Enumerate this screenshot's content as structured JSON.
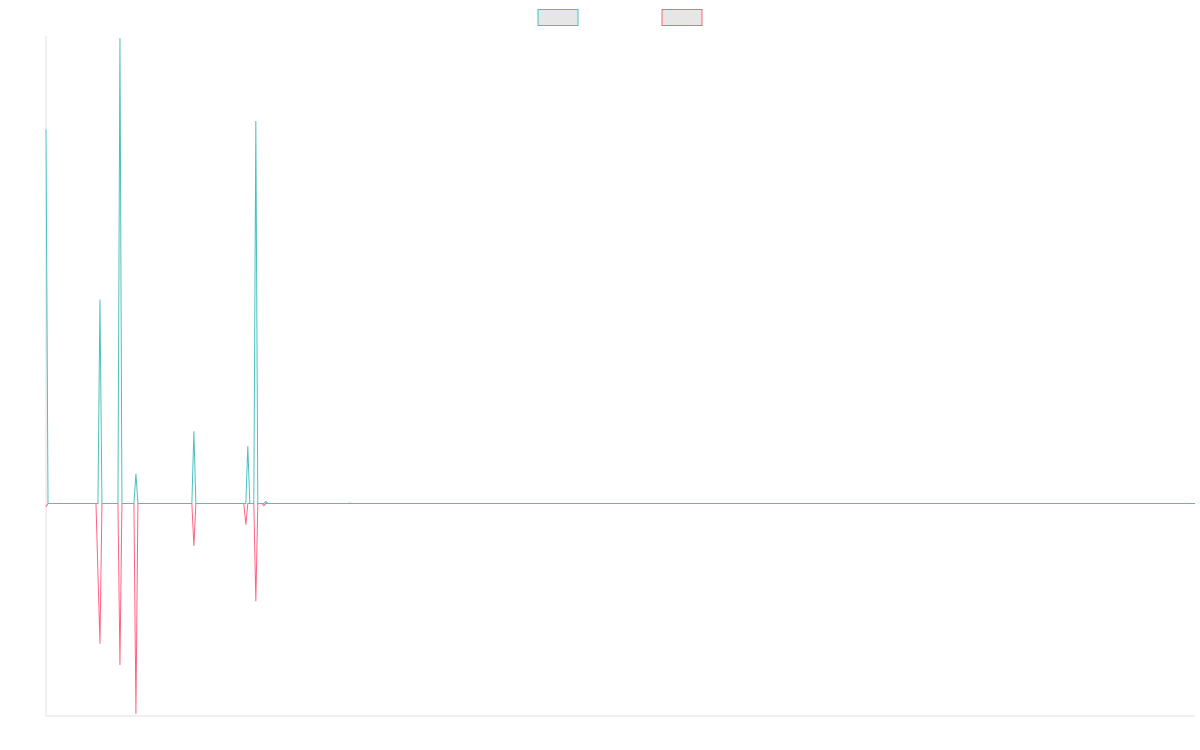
{
  "chart_data": {
    "type": "line",
    "title": "",
    "xlabel": "",
    "ylabel": "",
    "legend_position": "top-center",
    "grid": false,
    "ylim": [
      -10,
      22
    ],
    "x": [
      0,
      1,
      2,
      3,
      4,
      5,
      6,
      7,
      8,
      9,
      10,
      11,
      12,
      13,
      14,
      15,
      16,
      17,
      18,
      19,
      20,
      21,
      22,
      23,
      24,
      25,
      26,
      27,
      28,
      29,
      30,
      31,
      32,
      33,
      34,
      35,
      36,
      37,
      38,
      39,
      40,
      41,
      42,
      43,
      44,
      45,
      46,
      47,
      48,
      49,
      50,
      51,
      52,
      53,
      54,
      55,
      56,
      57,
      58,
      59,
      60,
      61,
      62,
      63,
      64,
      65,
      66,
      67,
      68,
      69,
      70,
      71,
      72,
      73,
      74,
      75,
      76,
      77,
      78,
      79,
      80,
      81,
      82,
      83,
      84,
      85,
      86,
      87,
      88,
      89,
      90,
      91,
      92,
      93,
      94,
      95,
      96,
      97,
      98,
      99,
      100,
      101,
      102,
      103,
      104,
      105,
      106,
      107,
      108,
      109,
      110,
      111,
      112,
      113,
      114,
      115,
      116,
      117,
      118,
      119,
      120,
      121,
      122,
      123,
      124,
      125,
      126,
      127,
      128,
      129,
      130,
      131,
      132,
      133,
      134,
      135,
      136,
      137,
      138,
      139,
      140,
      141,
      142,
      143,
      144,
      145,
      146,
      147,
      148,
      149,
      150,
      151,
      152,
      153,
      154,
      155,
      156,
      157,
      158,
      159,
      160,
      161,
      162,
      163,
      164,
      165,
      166,
      167,
      168,
      169,
      170,
      171,
      172,
      173,
      174,
      175,
      176,
      177,
      178,
      179,
      180,
      181,
      182,
      183,
      184,
      185,
      186,
      187,
      188,
      189,
      190,
      191,
      192,
      193,
      194,
      195,
      196,
      197,
      198,
      199,
      200,
      201,
      202,
      203,
      204,
      205,
      206,
      207,
      208,
      209,
      210,
      211,
      212,
      213,
      214,
      215,
      216,
      217,
      218,
      219,
      220,
      221,
      222,
      223,
      224,
      225,
      226,
      227,
      228,
      229,
      230,
      231,
      232,
      233,
      234,
      235,
      236,
      237,
      238,
      239,
      240,
      241,
      242,
      243,
      244,
      245,
      246,
      247,
      248,
      249,
      250,
      251,
      252,
      253,
      254,
      255,
      256,
      257,
      258,
      259,
      260,
      261,
      262,
      263,
      264,
      265,
      266,
      267,
      268,
      269,
      270,
      271,
      272,
      273,
      274,
      275,
      276,
      277,
      278,
      279,
      280,
      281,
      282,
      283,
      284,
      285,
      286,
      287,
      288,
      289,
      290,
      291,
      292,
      293,
      294,
      295,
      296,
      297,
      298,
      299,
      300,
      301,
      302,
      303,
      304,
      305,
      306,
      307,
      308,
      309,
      310,
      311,
      312,
      313,
      314,
      315,
      316,
      317,
      318,
      319,
      320,
      321,
      322,
      323,
      324,
      325,
      326,
      327,
      328,
      329,
      330,
      331,
      332,
      333,
      334,
      335,
      336,
      337,
      338,
      339,
      340,
      341,
      342,
      343,
      344,
      345,
      346,
      347,
      348,
      349,
      350,
      351,
      352,
      353,
      354,
      355,
      356,
      357,
      358,
      359,
      360,
      361,
      362,
      363,
      364,
      365,
      366,
      367,
      368,
      369,
      370,
      371,
      372,
      373,
      374,
      375,
      376,
      377,
      378,
      379,
      380,
      381,
      382,
      383,
      384,
      385,
      386,
      387,
      388,
      389,
      390,
      391,
      392,
      393,
      394,
      395,
      396,
      397,
      398,
      399,
      400,
      401,
      402,
      403,
      404,
      405,
      406,
      407,
      408,
      409,
      410,
      411,
      412,
      413,
      414,
      415,
      416,
      417,
      418,
      419,
      420,
      421,
      422,
      423,
      424,
      425,
      426,
      427,
      428,
      429,
      430,
      431,
      432,
      433,
      434,
      435,
      436,
      437,
      438,
      439,
      440,
      441,
      442,
      443,
      444,
      445,
      446,
      447,
      448,
      449,
      450,
      451,
      452,
      453,
      454,
      455,
      456,
      457,
      458,
      459,
      460,
      461,
      462,
      463,
      464,
      465,
      466,
      467,
      468,
      469,
      470,
      471,
      472,
      473,
      474,
      475,
      476,
      477,
      478,
      479,
      480,
      481,
      482,
      483,
      484,
      485,
      486,
      487,
      488,
      489,
      490,
      491,
      492,
      493,
      494,
      495,
      496,
      497,
      498,
      499,
      500,
      501,
      502,
      503,
      504,
      505,
      506,
      507,
      508,
      509,
      510,
      511,
      512,
      513,
      514,
      515,
      516,
      517,
      518,
      519,
      520,
      521,
      522,
      523,
      524,
      525,
      526,
      527,
      528,
      529,
      530,
      531,
      532,
      533,
      534,
      535,
      536,
      537,
      538,
      539,
      540,
      541,
      542,
      543,
      544,
      545,
      546,
      547,
      548,
      549,
      550,
      551,
      552,
      553,
      554,
      555,
      556,
      557,
      558,
      559,
      560,
      561,
      562,
      563,
      564,
      565,
      566,
      567,
      568,
      569,
      570,
      571,
      572,
      573,
      574,
      575
    ],
    "series": [
      {
        "name": "",
        "color": "#4bc0c0",
        "fill": "#e6e6e6",
        "points": [
          [
            0,
            17.6
          ],
          [
            1,
            0
          ],
          [
            26,
            0
          ],
          [
            27,
            9.6
          ],
          [
            28,
            0
          ],
          [
            36,
            0
          ],
          [
            37,
            21.9
          ],
          [
            38,
            0
          ],
          [
            44,
            0
          ],
          [
            45,
            1.4
          ],
          [
            46,
            0
          ],
          [
            73,
            0
          ],
          [
            74,
            3.4
          ],
          [
            75,
            0
          ],
          [
            100,
            0
          ],
          [
            101,
            2.7
          ],
          [
            102,
            0
          ],
          [
            104,
            0
          ],
          [
            105,
            18
          ],
          [
            106,
            0
          ],
          [
            109,
            0
          ],
          [
            110,
            0.1
          ],
          [
            111,
            0
          ],
          [
            151,
            0
          ],
          [
            152,
            0.02
          ],
          [
            153,
            0
          ],
          [
            575,
            0
          ]
        ]
      },
      {
        "name": "",
        "color": "#ff6384",
        "fill": "#e6e6e6",
        "points": [
          [
            0,
            -0.15
          ],
          [
            1,
            0
          ],
          [
            25,
            0
          ],
          [
            27,
            -6.6
          ],
          [
            28,
            0
          ],
          [
            36,
            0
          ],
          [
            37,
            -7.6
          ],
          [
            38,
            0
          ],
          [
            44,
            0
          ],
          [
            45,
            -9.9
          ],
          [
            46,
            0
          ],
          [
            73,
            0
          ],
          [
            74,
            -2
          ],
          [
            75,
            0
          ],
          [
            99,
            0
          ],
          [
            100,
            -1
          ],
          [
            101,
            0
          ],
          [
            104,
            0
          ],
          [
            105,
            -4.6
          ],
          [
            106,
            0
          ],
          [
            108,
            0
          ],
          [
            109,
            -0.1
          ],
          [
            110,
            0
          ],
          [
            575,
            0
          ]
        ]
      }
    ]
  }
}
